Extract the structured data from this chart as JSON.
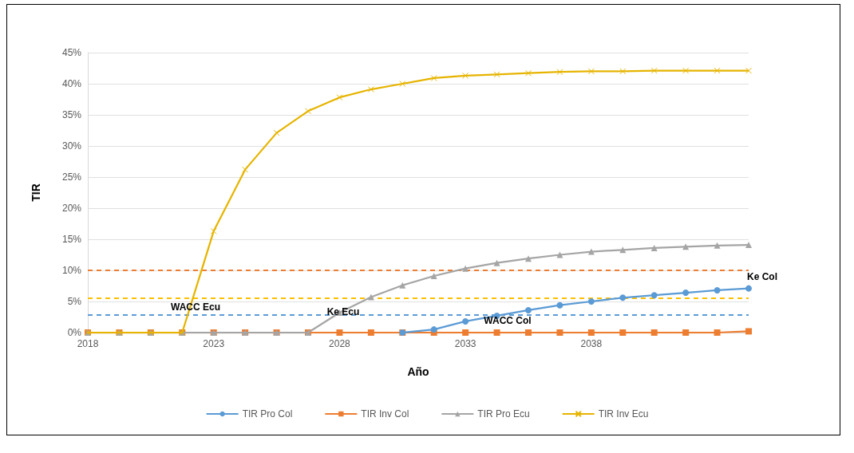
{
  "chart_data": {
    "type": "line",
    "xlabel": "Año",
    "ylabel": "TIR",
    "categories": [
      "2018",
      null,
      null,
      null,
      "2023",
      null,
      null,
      null,
      "2028",
      null,
      null,
      null,
      "2033",
      null,
      null,
      null,
      "2038",
      null,
      null,
      null,
      null,
      null
    ],
    "series": [
      {
        "name": "TIR Pro Col",
        "color": "#5b9bd5",
        "marker": "circle",
        "values": [
          null,
          null,
          null,
          null,
          null,
          null,
          null,
          null,
          null,
          null,
          0,
          0.5,
          1.8,
          2.7,
          3.6,
          4.4,
          5.0,
          5.6,
          6.0,
          6.4,
          6.8,
          7.1
        ]
      },
      {
        "name": "TIR Inv Col",
        "color": "#ed7d31",
        "marker": "square",
        "values": [
          0,
          0,
          0,
          0,
          0,
          0,
          0,
          0,
          0,
          0,
          0,
          0,
          0,
          0,
          0,
          0,
          0,
          0,
          0,
          0,
          0,
          0.2
        ]
      },
      {
        "name": "TIR Pro Ecu",
        "color": "#a5a5a5",
        "marker": "triangle",
        "values": [
          0,
          0,
          0,
          0,
          0,
          0,
          0,
          0,
          3.2,
          5.7,
          7.6,
          9.1,
          10.3,
          11.2,
          11.9,
          12.5,
          13.0,
          13.3,
          13.6,
          13.8,
          14.0,
          14.1
        ]
      },
      {
        "name": "TIR Inv Ecu",
        "color": "#e6b400",
        "marker": "cross",
        "values": [
          0,
          0,
          0,
          0,
          16.3,
          26.2,
          32.1,
          35.6,
          37.8,
          39.1,
          40.0,
          40.9,
          41.3,
          41.5,
          41.7,
          41.9,
          42.0,
          42.0,
          42.1,
          42.1,
          42.1,
          42.1
        ]
      }
    ],
    "ylim": [
      0,
      45
    ],
    "yticks": [
      {
        "value": 0,
        "label": "0%"
      },
      {
        "value": 5,
        "label": "5%"
      },
      {
        "value": 10,
        "label": "10%"
      },
      {
        "value": 15,
        "label": "15%"
      },
      {
        "value": 20,
        "label": "20%"
      },
      {
        "value": 25,
        "label": "25%"
      },
      {
        "value": 30,
        "label": "30%"
      },
      {
        "value": 35,
        "label": "35%"
      },
      {
        "value": 40,
        "label": "40%"
      },
      {
        "value": 45,
        "label": "45%"
      }
    ],
    "ref_lines": [
      {
        "axis": "y",
        "value": 10,
        "color": "#ed7d31",
        "line_style": "dashed"
      },
      {
        "axis": "y",
        "value": 5.6,
        "color": "#ffc000",
        "line_style": "dashed"
      },
      {
        "axis": "y",
        "value": 2.9,
        "color": "#5b9bd5",
        "line_style": "dashed"
      }
    ],
    "annotations": [
      "WACC Ecu",
      "Ke Ecu",
      "WACC Col",
      "Ke Col"
    ],
    "grid": "y",
    "legend": "bottom"
  }
}
